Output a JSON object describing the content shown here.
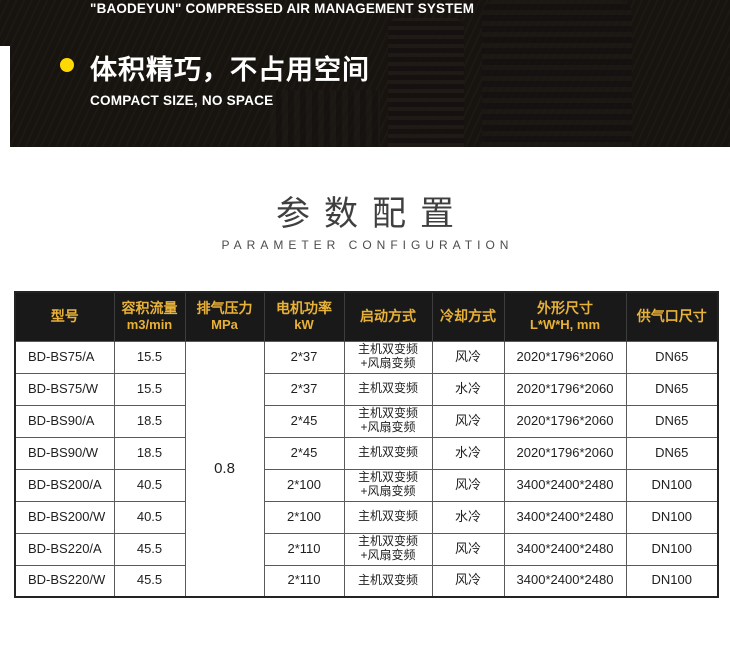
{
  "banner": {
    "kicker": "\"BAODEYUN\" COMPRESSED AIR MANAGEMENT SYSTEM",
    "title": "体积精巧，不占用空间",
    "subtitle": "COMPACT SIZE, NO SPACE",
    "bullet_color": "#ffd903",
    "background_color": "#17130f"
  },
  "section": {
    "title": "参数配置",
    "subtitle": "PARAMETER CONFIGURATION"
  },
  "table": {
    "header_bg": "#191919",
    "header_text_color": "#e8b239",
    "columns": [
      {
        "line1": "型号",
        "line2": ""
      },
      {
        "line1": "容积流量",
        "line2": "m3/min"
      },
      {
        "line1": "排气压力",
        "line2": "MPa"
      },
      {
        "line1": "电机功率",
        "line2": "kW"
      },
      {
        "line1": "启动方式",
        "line2": ""
      },
      {
        "line1": "冷却方式",
        "line2": ""
      },
      {
        "line1": "外形尺寸",
        "line2": "L*W*H, mm"
      },
      {
        "line1": "供气口尺寸",
        "line2": ""
      }
    ],
    "pressure_shared": "0.8",
    "rows": [
      {
        "model": "BD-BS75/A",
        "flow": "15.5",
        "power": "2*37",
        "start": "主机双变频\n+风扇变频",
        "cooling": "风冷",
        "dims": "2020*1796*2060",
        "port": "DN65"
      },
      {
        "model": "BD-BS75/W",
        "flow": "15.5",
        "power": "2*37",
        "start": "主机双变频",
        "cooling": "水冷",
        "dims": "2020*1796*2060",
        "port": "DN65"
      },
      {
        "model": "BD-BS90/A",
        "flow": "18.5",
        "power": "2*45",
        "start": "主机双变频\n+风扇变频",
        "cooling": "风冷",
        "dims": "2020*1796*2060",
        "port": "DN65"
      },
      {
        "model": "BD-BS90/W",
        "flow": "18.5",
        "power": "2*45",
        "start": "主机双变频",
        "cooling": "水冷",
        "dims": "2020*1796*2060",
        "port": "DN65"
      },
      {
        "model": "BD-BS200/A",
        "flow": "40.5",
        "power": "2*100",
        "start": "主机双变频\n+风扇变频",
        "cooling": "风冷",
        "dims": "3400*2400*2480",
        "port": "DN100"
      },
      {
        "model": "BD-BS200/W",
        "flow": "40.5",
        "power": "2*100",
        "start": "主机双变频",
        "cooling": "水冷",
        "dims": "3400*2400*2480",
        "port": "DN100"
      },
      {
        "model": "BD-BS220/A",
        "flow": "45.5",
        "power": "2*110",
        "start": "主机双变频\n+风扇变频",
        "cooling": "风冷",
        "dims": "3400*2400*2480",
        "port": "DN100"
      },
      {
        "model": "BD-BS220/W",
        "flow": "45.5",
        "power": "2*110",
        "start": "主机双变频",
        "cooling": "风冷",
        "dims": "3400*2400*2480",
        "port": "DN100"
      }
    ]
  }
}
